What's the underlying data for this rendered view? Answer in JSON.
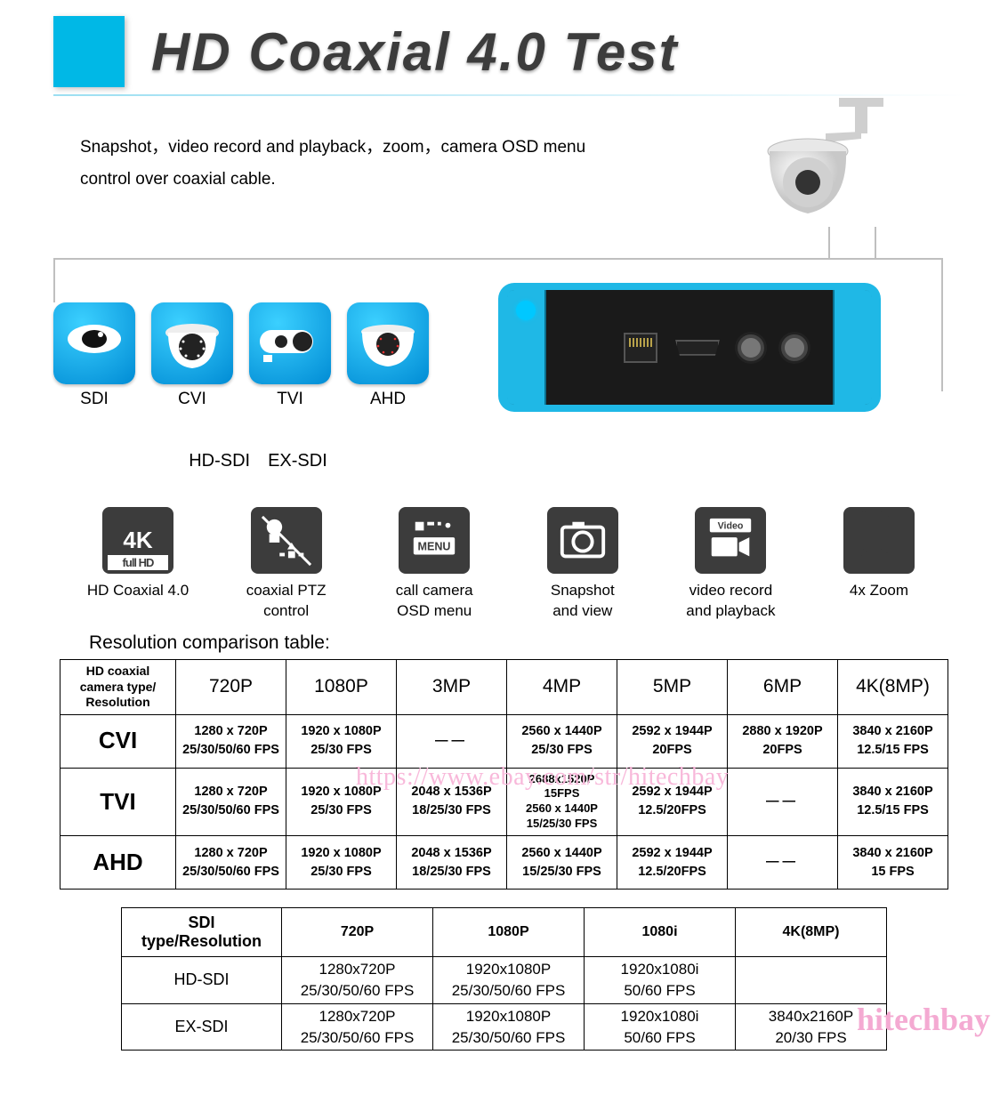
{
  "colors": {
    "accent": "#00b8e6",
    "icon_bg": "#3c3c3c",
    "border": "#000000",
    "watermark": "#f8b8da"
  },
  "header": {
    "title": "HD Coaxial 4.0 Test"
  },
  "intro": "Snapshot，video record and playback，zoom，camera OSD menu control over coaxial cable.",
  "diagram": {
    "cameras": [
      {
        "label": "SDI"
      },
      {
        "label": "CVI"
      },
      {
        "label": "TVI"
      },
      {
        "label": "AHD"
      }
    ],
    "subline": "HD-SDI EX-SDI"
  },
  "features": [
    {
      "icon": "4k",
      "cap": "HD Coaxial 4.0"
    },
    {
      "icon": "ptz",
      "cap": "coaxial PTZ\ncontrol"
    },
    {
      "icon": "menu",
      "cap": "call camera\nOSD menu"
    },
    {
      "icon": "snap",
      "cap": "Snapshot\nand view"
    },
    {
      "icon": "video",
      "cap": "video record\nand playback"
    },
    {
      "icon": "zoom",
      "cap": "4x Zoom"
    }
  ],
  "watermark": {
    "url": "https://www.ebay.com/str/hitechbay",
    "brand": "hitechbay"
  },
  "table1": {
    "title": "Resolution comparison table:",
    "header_first": "HD coaxial camera type/ Resolution",
    "columns": [
      "720P",
      "1080P",
      "3MP",
      "4MP",
      "5MP",
      "6MP",
      "4K(8MP)"
    ],
    "rows": [
      {
        "name": "CVI",
        "cells": [
          [
            "1280 x 720P",
            "25/30/50/60 FPS"
          ],
          [
            "1920 x 1080P",
            "25/30 FPS"
          ],
          [
            "—"
          ],
          [
            "2560 x 1440P",
            "25/30 FPS"
          ],
          [
            "2592 x 1944P",
            "20FPS"
          ],
          [
            "2880 x 1920P",
            "20FPS"
          ],
          [
            "3840 x 2160P",
            "12.5/15 FPS"
          ]
        ]
      },
      {
        "name": "TVI",
        "cells": [
          [
            "1280 x 720P",
            "25/30/50/60 FPS"
          ],
          [
            "1920 x 1080P",
            "25/30 FPS"
          ],
          [
            "2048 x 1536P",
            "18/25/30 FPS"
          ],
          [
            "2688x1520P 15FPS",
            "2560 x 1440P",
            "15/25/30 FPS"
          ],
          [
            "2592 x 1944P",
            "12.5/20FPS"
          ],
          [
            "—"
          ],
          [
            "3840 x 2160P",
            "12.5/15 FPS"
          ]
        ]
      },
      {
        "name": "AHD",
        "cells": [
          [
            "1280 x 720P",
            "25/30/50/60 FPS"
          ],
          [
            "1920 x 1080P",
            "25/30 FPS"
          ],
          [
            "2048 x 1536P",
            "18/25/30 FPS"
          ],
          [
            "2560 x 1440P",
            "15/25/30 FPS"
          ],
          [
            "2592 x 1944P",
            "12.5/20FPS"
          ],
          [
            "—"
          ],
          [
            "3840 x 2160P",
            "15 FPS"
          ]
        ]
      }
    ]
  },
  "table2": {
    "header_first": "SDI type/Resolution",
    "columns": [
      "720P",
      "1080P",
      "1080i",
      "4K(8MP)"
    ],
    "rows": [
      {
        "name": "HD-SDI",
        "cells": [
          [
            "1280x720P",
            "25/30/50/60 FPS"
          ],
          [
            "1920x1080P",
            "25/30/50/60 FPS"
          ],
          [
            "1920x1080i",
            "50/60 FPS"
          ],
          [
            ""
          ]
        ]
      },
      {
        "name": "EX-SDI",
        "cells": [
          [
            "1280x720P",
            "25/30/50/60 FPS"
          ],
          [
            "1920x1080P",
            "25/30/50/60 FPS"
          ],
          [
            "1920x1080i",
            "50/60 FPS"
          ],
          [
            "3840x2160P",
            "20/30 FPS"
          ]
        ]
      }
    ]
  }
}
